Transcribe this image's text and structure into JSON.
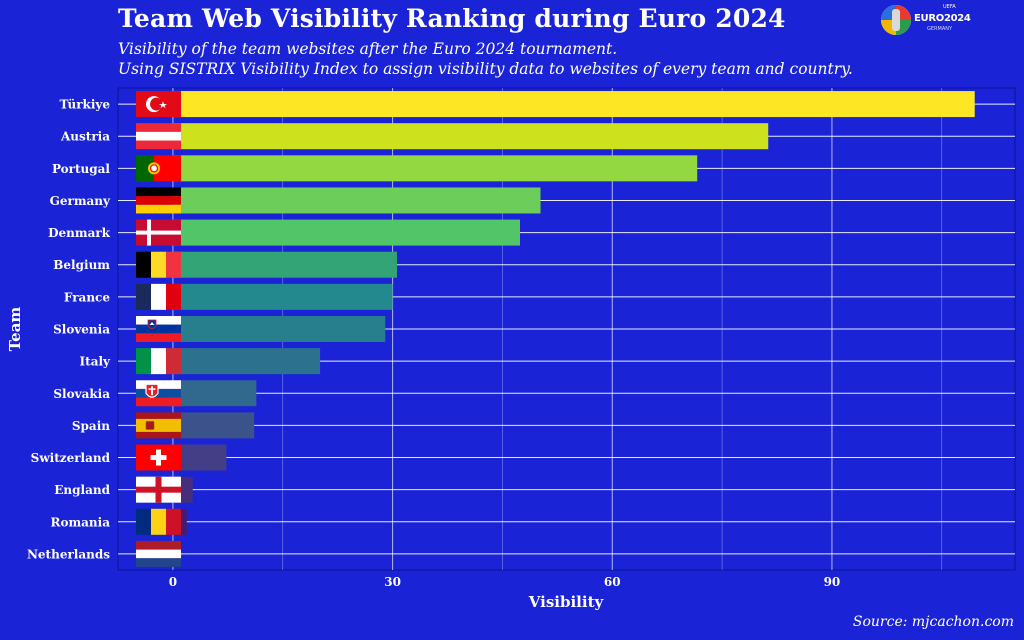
{
  "title": "Team Web Visibility Ranking during Euro 2024",
  "subtitle_1": "Visibility of the team websites after the Euro 2024 tournament.",
  "subtitle_2": "Using SISTRIX Visibility Index to assign visibility data to websites of every team and country.",
  "caption": "Source: mjcachon.com",
  "logo": {
    "text": "EURO2024",
    "sub": "GERMANY",
    "uefa": "UEFA"
  },
  "chart_data": {
    "type": "bar",
    "orientation": "horizontal",
    "xlabel": "Visibility",
    "ylabel": "Team",
    "xlim": [
      -7.5,
      115
    ],
    "xticks": [
      0,
      30,
      60,
      90
    ],
    "grid": true,
    "categories": [
      "Türkiye",
      "Austria",
      "Portugal",
      "Germany",
      "Denmark",
      "Belgium",
      "France",
      "Slovenia",
      "Italy",
      "Slovakia",
      "Spain",
      "Switzerland",
      "England",
      "Romania",
      "Netherlands"
    ],
    "values": [
      109.5,
      81.3,
      71.6,
      50.2,
      47.4,
      30.6,
      30.0,
      29.0,
      20.1,
      11.4,
      11.1,
      7.3,
      2.7,
      1.9,
      0.9
    ],
    "colors": [
      "#fde725",
      "#cde11d",
      "#93d741",
      "#6ccd5a",
      "#52c569",
      "#32a476",
      "#23898e",
      "#277f8e",
      "#2c728e",
      "#31688e",
      "#3b528b",
      "#433e85",
      "#472d7b",
      "#481a6c",
      "#440154"
    ]
  },
  "flags": [
    "turkey-flag",
    "austria-flag",
    "portugal-flag",
    "germany-flag",
    "denmark-flag",
    "belgium-flag",
    "france-flag",
    "slovenia-flag",
    "italy-flag",
    "slovakia-flag",
    "spain-flag",
    "switzerland-flag",
    "england-flag",
    "romania-flag",
    "netherlands-flag"
  ]
}
